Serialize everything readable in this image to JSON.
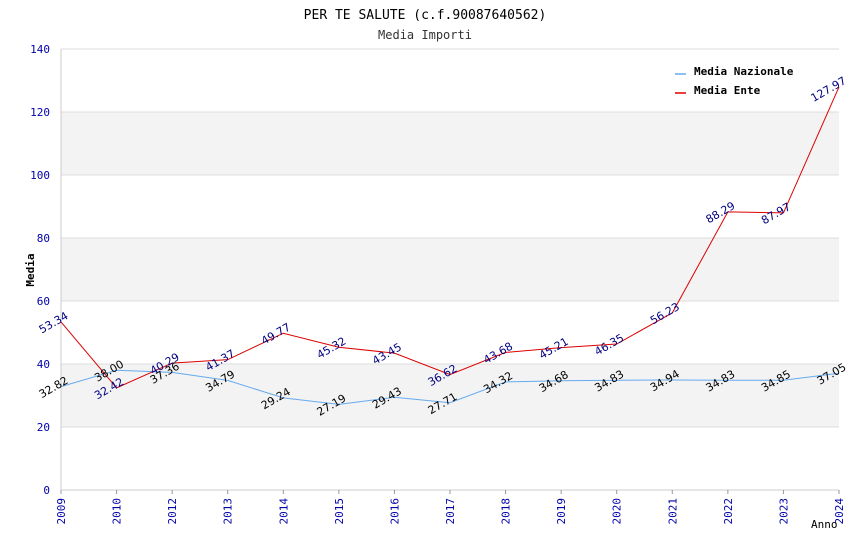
{
  "chart_data": {
    "type": "line",
    "title": "PER TE SALUTE (c.f.90087640562)",
    "subtitle": "Media Importi",
    "xlabel": "Anno",
    "ylabel": "Media",
    "ylim": [
      0,
      140
    ],
    "yticks": [
      0,
      20,
      40,
      60,
      80,
      100,
      120,
      140
    ],
    "grid": true,
    "legend_position": "top-right",
    "categories": [
      "2009",
      "2010",
      "2012",
      "2013",
      "2014",
      "2015",
      "2016",
      "2017",
      "2018",
      "2019",
      "2020",
      "2021",
      "2022",
      "2023",
      "2024"
    ],
    "series": [
      {
        "name": "Media Nazionale",
        "color": "#66aaee",
        "label_color": "#000000",
        "values": [
          32.82,
          38.0,
          37.36,
          34.79,
          29.24,
          27.19,
          29.43,
          27.71,
          34.32,
          34.68,
          34.83,
          34.94,
          34.83,
          34.85,
          37.05
        ],
        "labels": [
          "32.82",
          "38.00",
          "37.36",
          "34.79",
          "29.24",
          "27.19",
          "29.43",
          "27.71",
          "34.32",
          "34.68",
          "34.83",
          "34.94",
          "34.83",
          "34.85",
          "37.05"
        ]
      },
      {
        "name": "Media Ente",
        "color": "#dd0000",
        "label_color": "#000080",
        "values": [
          53.34,
          32.42,
          40.29,
          41.37,
          49.77,
          45.32,
          43.45,
          36.62,
          43.68,
          45.21,
          46.35,
          56.23,
          88.29,
          87.97,
          127.97
        ],
        "labels": [
          "53.34",
          "32.42",
          "40.29",
          "41.37",
          "49.77",
          "45.32",
          "43.45",
          "36.62",
          "43.68",
          "45.21",
          "46.35",
          "56.23",
          "88.29",
          "87.97",
          "127.97"
        ]
      }
    ]
  }
}
